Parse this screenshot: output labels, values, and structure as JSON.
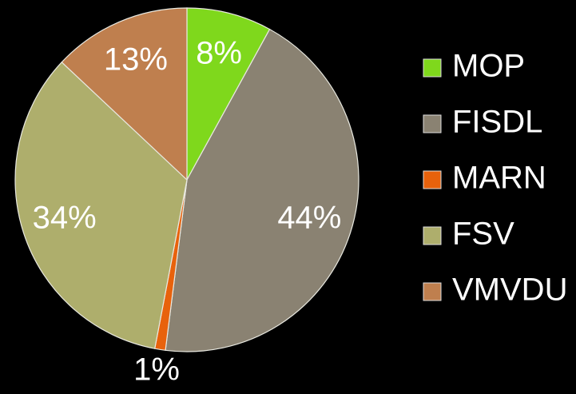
{
  "chart_data": {
    "type": "pie",
    "categories": [
      "MOP",
      "FISDL",
      "MARN",
      "FSV",
      "VMVDU"
    ],
    "values": [
      8,
      44,
      1,
      34,
      13
    ],
    "value_labels": [
      "8%",
      "44%",
      "1%",
      "34%",
      "13%"
    ],
    "colors": [
      "#7fd81c",
      "#8a8272",
      "#e8620c",
      "#aeae6c",
      "#bf7f4e"
    ],
    "legend": "right"
  }
}
